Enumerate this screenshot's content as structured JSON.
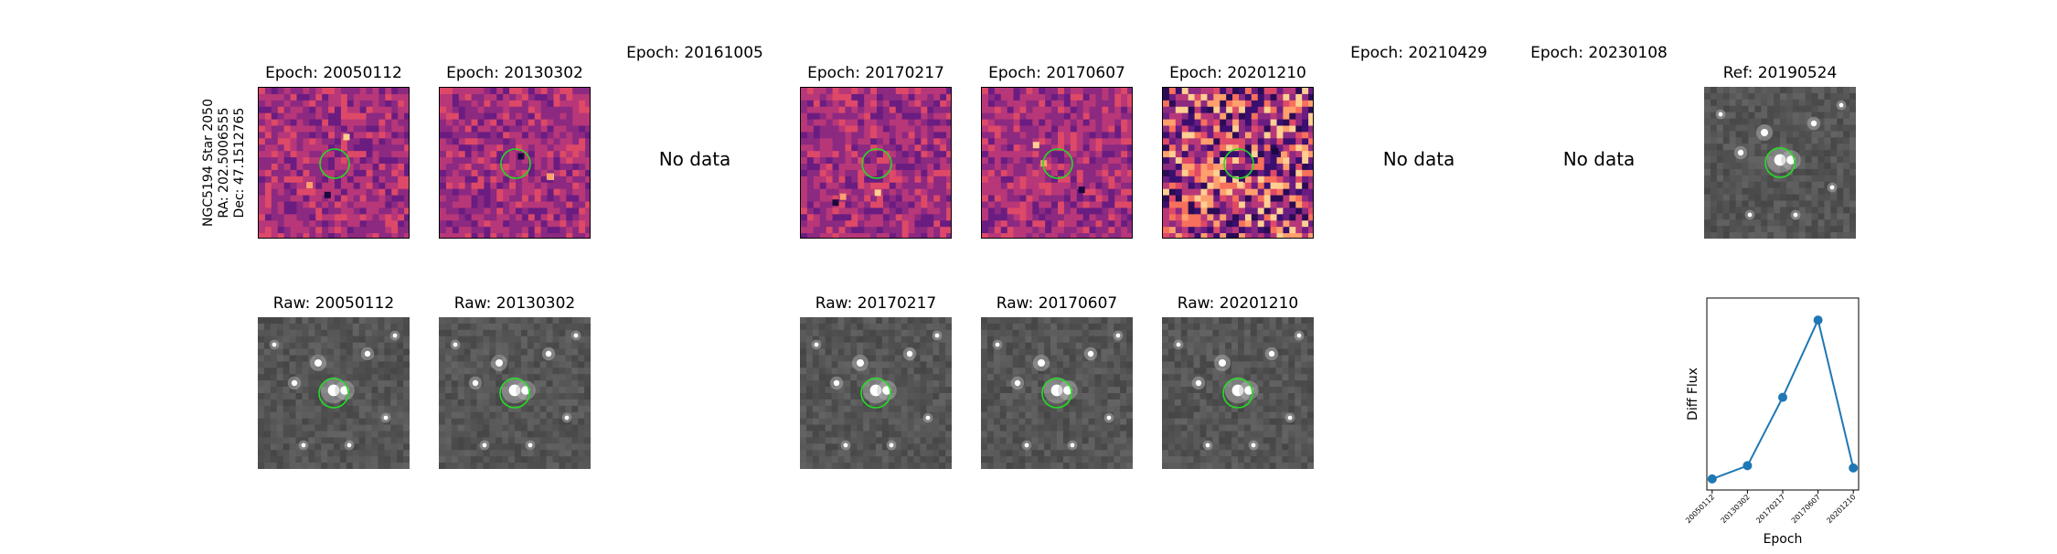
{
  "star": {
    "line1": "NGC5194 Star 2050",
    "line2": "RA: 202.5006555",
    "line3": "Dec: 47.1512765"
  },
  "top_titles": [
    "Epoch: 20050112",
    "Epoch: 20130302",
    "Epoch: 20161005",
    "Epoch: 20170217",
    "Epoch: 20170607",
    "Epoch: 20201210",
    "Epoch: 20210429",
    "Epoch: 20230108",
    "Ref: 20190524"
  ],
  "no_data_label": "No data",
  "bottom_titles": [
    "Raw: 20050112",
    "Raw: 20130302",
    "Raw: 20170217",
    "Raw: 20170607",
    "Raw: 20201210"
  ],
  "colors": {
    "diff_dark": "#3b0f6f",
    "diff_mid": "#8c2981",
    "diff_bright": "#de4968",
    "diff_hot": "#fe9f6d",
    "raw_bg": "#555555",
    "circle": "#22dd22",
    "line": "#1f77b4"
  },
  "chart_data": {
    "type": "line",
    "x": [
      "20050112",
      "20130302",
      "20170217",
      "20170607",
      "20201210"
    ],
    "y": [
      0.05,
      0.11,
      0.42,
      0.77,
      0.1
    ],
    "xlabel": "Epoch",
    "ylabel": "Diff Flux",
    "ylim": [
      0,
      0.87
    ],
    "grid": false
  }
}
